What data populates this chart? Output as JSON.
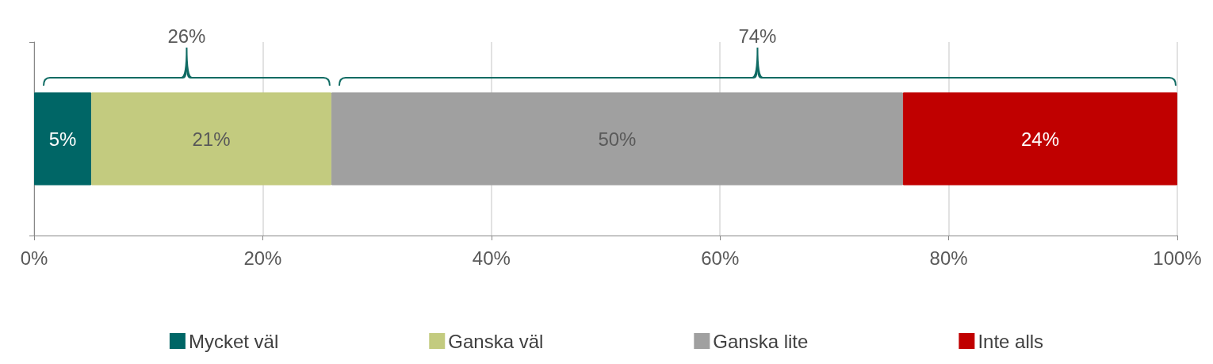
{
  "chart_data": {
    "type": "bar",
    "orientation": "horizontal",
    "stacked": true,
    "categories": [
      null
    ],
    "series": [
      {
        "name": "Mycket väl",
        "color": "#006666",
        "values": [
          5
        ],
        "value_labels": [
          "5%"
        ]
      },
      {
        "name": "Ganska väl",
        "color": "#c3cb7f",
        "values": [
          21
        ],
        "value_labels": [
          "21%"
        ]
      },
      {
        "name": "Ganska lite",
        "color": "#a0a0a0",
        "values": [
          50
        ],
        "value_labels": [
          "50%"
        ]
      },
      {
        "name": "Inte alls",
        "color": "#c00000",
        "values": [
          24
        ],
        "value_labels": [
          "24%"
        ]
      }
    ],
    "xlim": [
      0,
      100
    ],
    "xticks": [
      {
        "value": 0,
        "label": "0%"
      },
      {
        "value": 20,
        "label": "20%"
      },
      {
        "value": 40,
        "label": "40%"
      },
      {
        "value": 60,
        "label": "60%"
      },
      {
        "value": 80,
        "label": "80%"
      },
      {
        "value": 100,
        "label": "100%"
      }
    ],
    "grid": "x",
    "legend": "bottom",
    "annotations": [
      "26%",
      "74%"
    ]
  }
}
